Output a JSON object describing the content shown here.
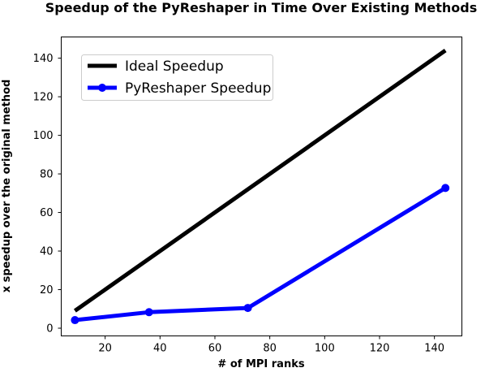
{
  "chart_data": {
    "type": "line",
    "title": "Speedup of the PyReshaper in Time Over Existing Methods",
    "xlabel": "# of MPI ranks",
    "ylabel": "x speedup over the original method",
    "xlim": [
      4,
      150
    ],
    "ylim": [
      -4,
      151
    ],
    "xticks": [
      20,
      40,
      60,
      80,
      100,
      120,
      140
    ],
    "yticks": [
      0,
      20,
      40,
      60,
      80,
      100,
      120,
      140
    ],
    "grid": false,
    "legend_position": "upper-left",
    "series": [
      {
        "name": "Ideal Speedup",
        "color": "#000000",
        "marker": "none",
        "x": [
          9,
          144
        ],
        "y": [
          9,
          144
        ]
      },
      {
        "name": "PyReshaper Speedup",
        "color": "#0000ff",
        "marker": "circle",
        "x": [
          9,
          36,
          72,
          144
        ],
        "y": [
          4.2,
          8.3,
          10.5,
          72.7
        ]
      }
    ]
  }
}
